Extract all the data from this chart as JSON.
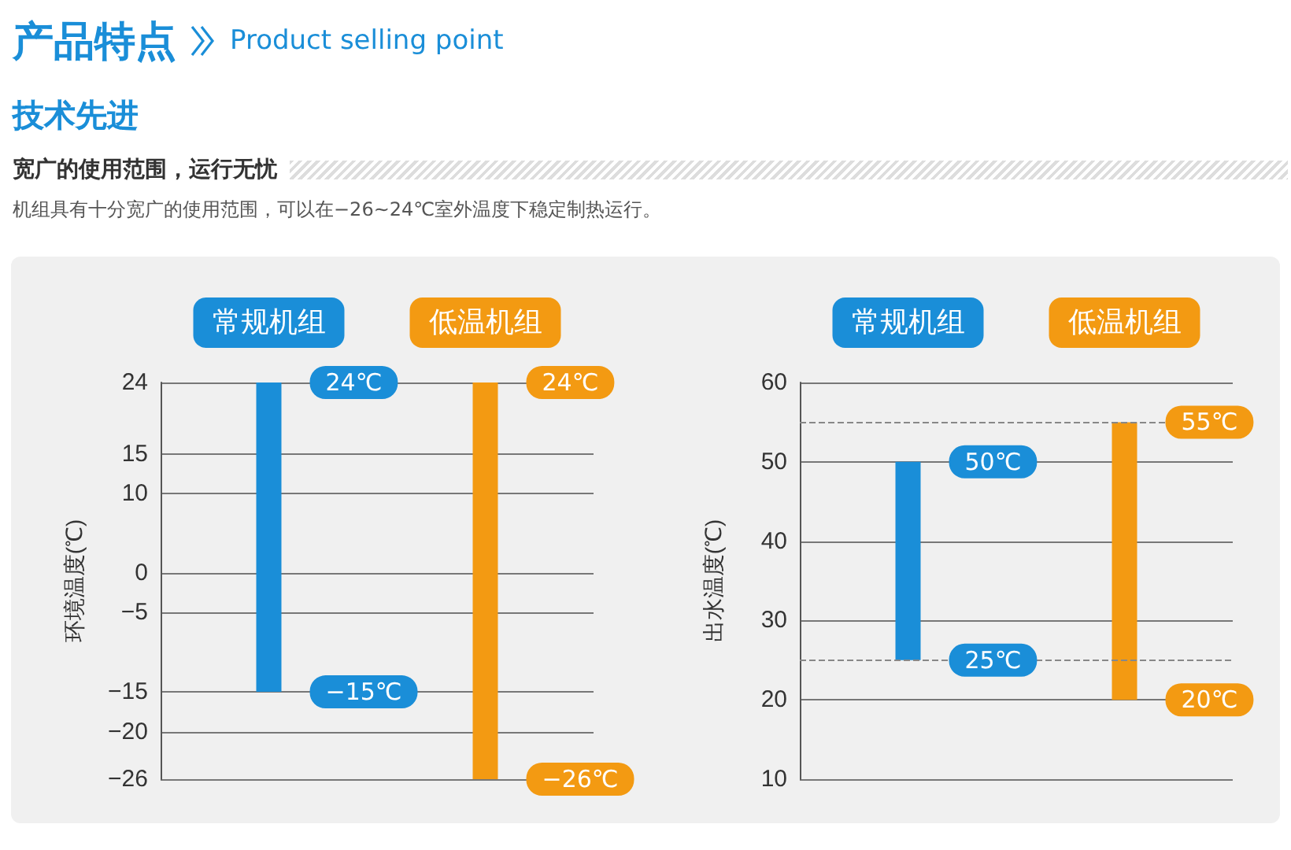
{
  "chart_data": [
    {
      "type": "bar",
      "title": "产品特点",
      "subtitle": "Product selling point",
      "annotations": [
        "技术先进",
        "宽广的使用范围，运行无忧",
        "机组具有十分宽广的使用范围，可以在−26~24℃室外温度下稳定制热运行。",
        {
          "text": "24℃",
          "x": "常规机组",
          "y": 24
        },
        {
          "text": "−15℃",
          "x": "常规机组",
          "y": -15
        },
        {
          "text": "24℃",
          "x": "低温机组",
          "y": 24
        },
        {
          "text": "−26℃",
          "x": "低温机组",
          "y": -26
        }
      ],
      "categories": [
        "常规机组",
        "低温机组"
      ],
      "values": [
        39,
        50
      ],
      "base": [
        -15,
        -26
      ],
      "colors": [
        "#1a8ed8",
        "#f39a12"
      ],
      "ylabel": "环境温度(℃)",
      "ylim": [
        -26,
        24
      ],
      "yticks": [
        24,
        15,
        10,
        0,
        {
          "value": -5,
          "label": "−5"
        },
        {
          "value": -15,
          "label": "−15"
        },
        {
          "value": -20,
          "label": "−20"
        },
        {
          "value": -26,
          "label": "−26"
        }
      ],
      "grid": "y"
    },
    {
      "type": "bar",
      "annotations": [
        {
          "text": "50℃",
          "x": "常规机组",
          "y": 50
        },
        {
          "text": "25℃",
          "x": "常规机组",
          "y": 25
        },
        {
          "text": "55℃",
          "x": "低温机组",
          "y": 55
        },
        {
          "text": "20℃",
          "x": "低温机组",
          "y": 20
        }
      ],
      "categories": [
        "常规机组",
        "低温机组"
      ],
      "values": [
        25,
        35
      ],
      "base": [
        25,
        20
      ],
      "colors": [
        "#1a8ed8",
        "#f39a12"
      ],
      "ylabel": "出水温度(℃)",
      "ylim": [
        10,
        60
      ],
      "yticks": [
        10,
        20,
        30,
        40,
        50,
        60
      ],
      "grid": "y",
      "ref_lines": [
        {
          "axis": "y",
          "value": 55,
          "color": "#888888",
          "line_style": "dashed"
        },
        {
          "axis": "y",
          "value": 25,
          "color": "#888888",
          "line_style": "dashed"
        }
      ]
    }
  ]
}
